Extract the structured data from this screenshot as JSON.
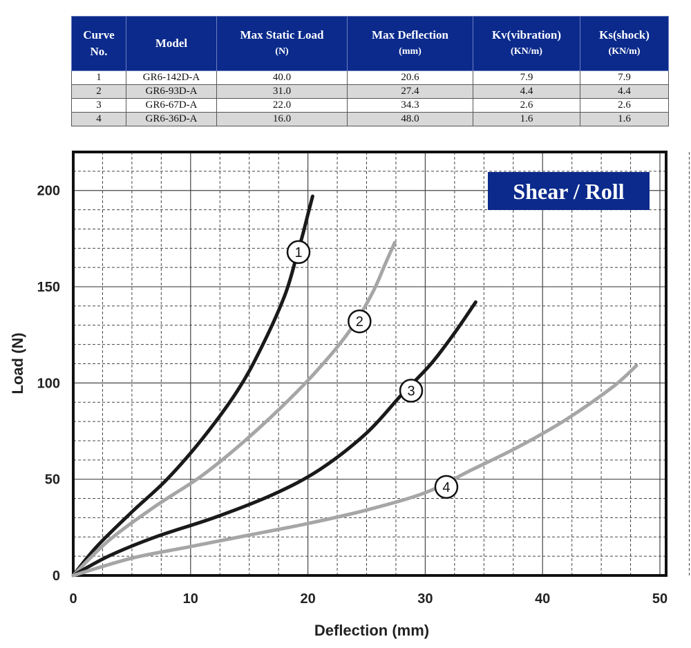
{
  "table": {
    "headers": [
      {
        "line1": "Curve",
        "line2": "No."
      },
      {
        "line1": "Model",
        "line2": ""
      },
      {
        "line1": "Max Static Load",
        "line2": "(N)"
      },
      {
        "line1": "Max Deflection",
        "line2": "(mm)"
      },
      {
        "line1": "Kv(vibration)",
        "line2": "(KN/m)"
      },
      {
        "line1": "Ks(shock)",
        "line2": "(KN/m)"
      }
    ],
    "rows": [
      [
        "1",
        "GR6-142D-A",
        "40.0",
        "20.6",
        "7.9",
        "7.9"
      ],
      [
        "2",
        "GR6-93D-A",
        "31.0",
        "27.4",
        "4.4",
        "4.4"
      ],
      [
        "3",
        "GR6-67D-A",
        "22.0",
        "34.3",
        "2.6",
        "2.6"
      ],
      [
        "4",
        "GR6-36D-A",
        "16.0",
        "48.0",
        "1.6",
        "1.6"
      ]
    ]
  },
  "chart_data": {
    "type": "line",
    "title": "Shear / Roll",
    "xlabel": "Deflection (mm)",
    "ylabel": "Load (N)",
    "xlim": [
      0,
      50
    ],
    "ylim": [
      0,
      220
    ],
    "xticks": [
      0,
      10,
      20,
      30,
      40,
      50
    ],
    "yticks": [
      0,
      50,
      100,
      150,
      200
    ],
    "grid": true,
    "series": [
      {
        "name": "1",
        "color": "#1a1a1a",
        "x": [
          0,
          2,
          5,
          8,
          11,
          14,
          16,
          18,
          19,
          19.6,
          20.1,
          20.4
        ],
        "y": [
          0,
          15,
          33,
          50,
          71,
          96,
          118,
          145,
          165,
          178,
          190,
          197
        ],
        "label_at": [
          19.2,
          168
        ]
      },
      {
        "name": "2",
        "color": "#a6a6a6",
        "x": [
          0,
          3,
          7,
          11,
          15,
          19,
          22,
          24,
          25.6,
          26.6,
          27.4
        ],
        "y": [
          0,
          18,
          36,
          52,
          72,
          95,
          115,
          131,
          148,
          162,
          173
        ],
        "label_at": [
          24.4,
          132
        ]
      },
      {
        "name": "3",
        "color": "#1a1a1a",
        "x": [
          0,
          3,
          7,
          12,
          17,
          21,
          25,
          28,
          30.5,
          32.5,
          34.3
        ],
        "y": [
          0,
          10,
          20,
          30,
          42,
          55,
          74,
          94,
          110,
          126,
          142
        ],
        "label_at": [
          28.8,
          96
        ]
      },
      {
        "name": "4",
        "color": "#a6a6a6",
        "x": [
          0,
          5,
          10,
          15,
          20,
          25,
          30,
          34,
          38,
          42,
          46,
          48
        ],
        "y": [
          0,
          9,
          15,
          21,
          27,
          34,
          43,
          55,
          67,
          81,
          98,
          109
        ],
        "label_at": [
          31.8,
          46
        ]
      }
    ]
  }
}
